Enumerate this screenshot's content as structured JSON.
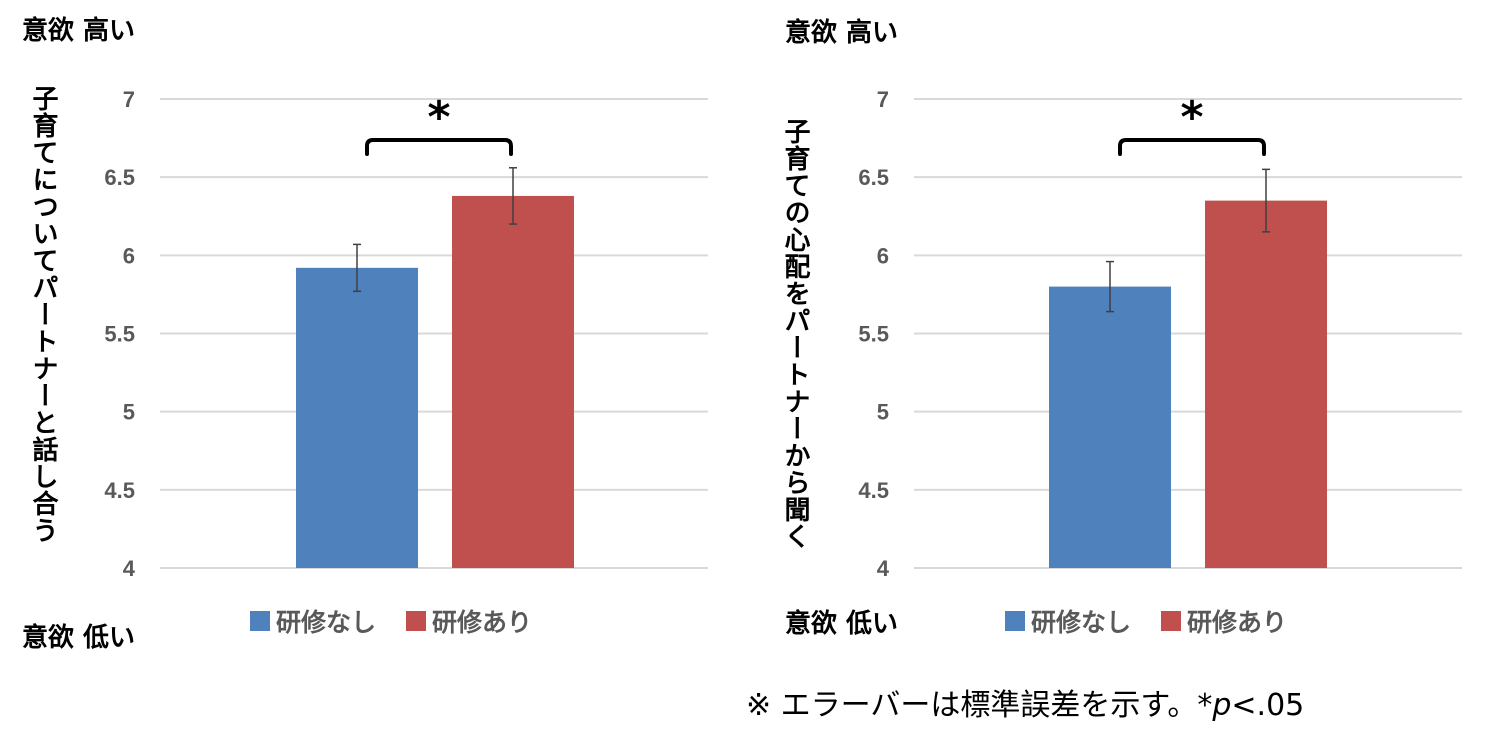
{
  "footnote": {
    "prefix": "※ エラーバーは標準誤差を示す。*",
    "p": "p",
    "suffix": "<.05"
  },
  "legend": {
    "items": [
      {
        "label": "研修なし",
        "color": "#4F81BD"
      },
      {
        "label": "研修あり",
        "color": "#C0504D"
      }
    ]
  },
  "panels": [
    {
      "high_label": "意欲 高い",
      "low_label": "意欲 低い",
      "ylabel": "子育てについてパートナーと話し合う"
    },
    {
      "high_label": "意欲 高い",
      "low_label": "意欲 低い",
      "ylabel": "子育ての心配をパートナーから聞く"
    }
  ],
  "chart_data": [
    {
      "type": "bar",
      "categories": [
        "研修なし",
        "研修あり"
      ],
      "values": [
        5.92,
        6.38
      ],
      "error": [
        0.15,
        0.18
      ],
      "colors": [
        "#4F81BD",
        "#C0504D"
      ],
      "ylabel": "子育てについてパートナーと話し合う",
      "ylim": [
        4,
        7
      ],
      "yticks": [
        "4",
        "4.5",
        "5",
        "5.5",
        "6",
        "6.5",
        "7"
      ],
      "significance": "*",
      "grid": true,
      "legend": "bottom"
    },
    {
      "type": "bar",
      "categories": [
        "研修なし",
        "研修あり"
      ],
      "values": [
        5.8,
        6.35
      ],
      "error": [
        0.16,
        0.2
      ],
      "colors": [
        "#4F81BD",
        "#C0504D"
      ],
      "ylabel": "子育ての心配をパートナーから聞く",
      "ylim": [
        4,
        7
      ],
      "yticks": [
        "4",
        "4.5",
        "5",
        "5.5",
        "6",
        "6.5",
        "7"
      ],
      "significance": "*",
      "grid": true,
      "legend": "bottom"
    }
  ]
}
